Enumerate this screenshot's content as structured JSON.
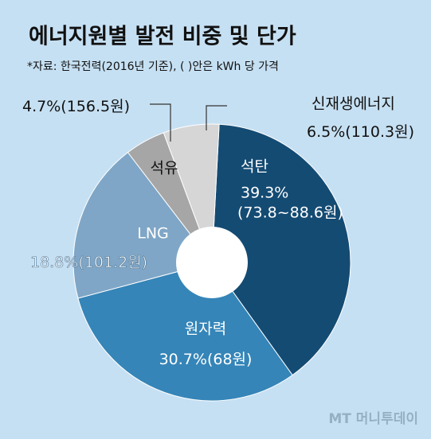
{
  "chart_data": {
    "type": "donut",
    "title": "에너지원별 발전 비중 및 단가",
    "subtitle": "*자료: 한국전력(2016년 기준), (  )안은 kWh 당 가격",
    "categories": [
      "석탄",
      "원자력",
      "LNG",
      "석유",
      "신재생에너지"
    ],
    "values": [
      39.3,
      30.7,
      18.8,
      4.7,
      6.5
    ],
    "value_labels": [
      "39.3%",
      "30.7%",
      "18.8%",
      "4.7%",
      "6.5%"
    ],
    "price_labels": [
      "(73.8~88.6원)",
      "(68원)",
      "(101.2원)",
      "(156.5원)",
      "(110.3원)"
    ],
    "colors": [
      "#144b73",
      "#3585b8",
      "#7fa6c6",
      "#a6a6a6",
      "#d6d6d6"
    ],
    "source_logo": "MT 머니투데이"
  }
}
